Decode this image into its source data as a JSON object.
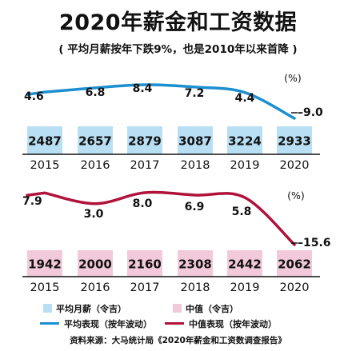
{
  "header": {
    "title": "2020年薪金和工资数据",
    "subtitle": "( 平均月薪按年下跌9%，也是2010年以来首降 )"
  },
  "chart_data": [
    {
      "type": "bar",
      "categories": [
        "2015",
        "2016",
        "2017",
        "2018",
        "2019",
        "2020"
      ],
      "series": [
        {
          "name": "平均月薪（令吉）",
          "values": [
            2487,
            2657,
            2879,
            3087,
            3224,
            2933
          ],
          "color": "#b9dff5"
        }
      ]
    },
    {
      "type": "line",
      "categories": [
        "2015",
        "2016",
        "2017",
        "2018",
        "2019",
        "2020"
      ],
      "unit": "(%)",
      "series": [
        {
          "name": "平均表现（按年波动）",
          "values": [
            4.6,
            6.8,
            8.4,
            7.2,
            4.4,
            -9.0
          ],
          "labels": [
            "4.6",
            "6.8",
            "8.4",
            "7.2",
            "4.4",
            "–9.0"
          ],
          "color": "#1b8fd0"
        }
      ]
    },
    {
      "type": "bar",
      "categories": [
        "2015",
        "2016",
        "2017",
        "2018",
        "2019",
        "2020"
      ],
      "series": [
        {
          "name": "中值（令吉）",
          "values": [
            1942,
            2000,
            2160,
            2308,
            2442,
            2062
          ],
          "color": "#f2c9da"
        }
      ]
    },
    {
      "type": "line",
      "categories": [
        "2015",
        "2016",
        "2017",
        "2018",
        "2019",
        "2020"
      ],
      "unit": "(%)",
      "series": [
        {
          "name": "中值表现（按年波动）",
          "values": [
            7.9,
            3.0,
            8.0,
            6.9,
            5.8,
            -15.6
          ],
          "labels": [
            "7.9",
            "3.0",
            "8.0",
            "6.9",
            "5.8",
            "–15.6"
          ],
          "color": "#b0123c"
        }
      ]
    }
  ],
  "legend": {
    "avg_salary": "平均月薪（令吉）",
    "median": "中值（令吉）",
    "avg_change": "平均表现（按年波动）",
    "median_change": "中值表现（按年波动）"
  },
  "source": "资料来源：大马统计局《2020年薪金和工资数调查报告》"
}
